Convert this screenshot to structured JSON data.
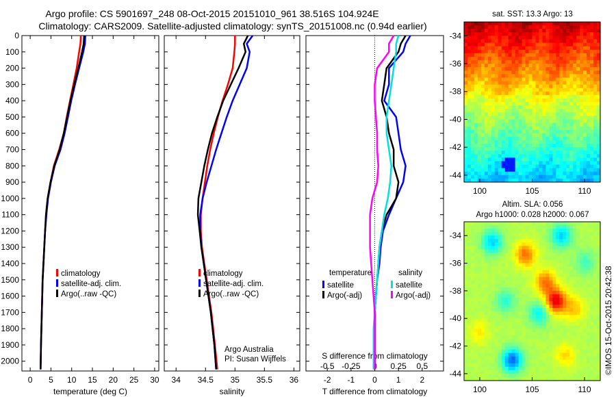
{
  "title": {
    "line1": "Argo profile: CS 5901697_248 08-Oct-2015 20151010_961 38.516S 104.924E",
    "line2": "Climatology: CARS2009. Satellite-adjusted climatology: synTS_20151008.nc (0.94d earlier)"
  },
  "colors": {
    "climatology": "#ff0000",
    "satellite": "#0000ff",
    "argo": "#000000",
    "sal_sat": "#00e0e0",
    "sal_argo": "#ff00ff"
  },
  "chart_data": [
    {
      "type": "line",
      "id": "temperature",
      "xlabel": "temperature (deg C)",
      "ylabel": "",
      "xlim": [
        -2,
        31
      ],
      "ylim": [
        2060,
        0
      ],
      "xticks": [
        0,
        5,
        10,
        15,
        20,
        25,
        30
      ],
      "yticks": [
        0,
        100,
        200,
        300,
        400,
        500,
        600,
        700,
        800,
        900,
        1000,
        1100,
        1200,
        1300,
        1400,
        1500,
        1600,
        1700,
        1800,
        1900,
        2000
      ],
      "legend": [
        "climatology",
        "satellite-adj. clim.",
        "Argo(..raw -QC)"
      ],
      "series": [
        {
          "name": "climatology",
          "color": "#ff0000",
          "x": [
            12.2,
            12.1,
            11.8,
            11.2,
            10.4,
            9.6,
            8.8,
            8.1,
            7.0,
            5.7,
            4.9,
            4.2,
            3.8,
            3.6,
            3.4,
            3.2,
            3.0,
            2.9,
            2.8,
            2.7,
            2.6,
            2.5
          ],
          "y": [
            0,
            50,
            100,
            200,
            300,
            400,
            500,
            600,
            700,
            800,
            900,
            1000,
            1100,
            1200,
            1300,
            1400,
            1500,
            1600,
            1700,
            1800,
            1900,
            2050
          ]
        },
        {
          "name": "satellite-adj. clim.",
          "color": "#0000ff",
          "x": [
            13.3,
            13.2,
            12.8,
            11.8,
            10.8,
            9.9,
            9.1,
            8.3,
            7.3,
            5.9,
            5.0,
            4.3,
            3.9,
            3.6,
            3.4,
            3.2,
            3.0,
            2.9,
            2.8,
            2.7,
            2.6,
            2.5
          ],
          "y": [
            0,
            50,
            100,
            200,
            300,
            400,
            500,
            600,
            700,
            800,
            900,
            1000,
            1100,
            1200,
            1300,
            1400,
            1500,
            1600,
            1700,
            1800,
            1900,
            2050
          ]
        },
        {
          "name": "Argo(..raw -QC)",
          "color": "#000000",
          "x": [
            13.0,
            12.9,
            12.5,
            11.6,
            10.6,
            9.7,
            8.9,
            8.1,
            7.1,
            5.8,
            4.9,
            4.2,
            3.8,
            3.6,
            3.4,
            3.2,
            3.0,
            2.9,
            2.8,
            2.7,
            2.6,
            2.5
          ],
          "y": [
            0,
            50,
            100,
            200,
            300,
            400,
            500,
            600,
            700,
            800,
            900,
            1000,
            1100,
            1200,
            1300,
            1400,
            1500,
            1600,
            1700,
            1800,
            1900,
            2050
          ]
        }
      ]
    },
    {
      "type": "line",
      "id": "salinity",
      "xlabel": "salinity",
      "ylabel": "",
      "xlim": [
        33.8,
        36.1
      ],
      "ylim": [
        2060,
        0
      ],
      "xticks": [
        34,
        34.5,
        35,
        35.5,
        36
      ],
      "legend": [
        "climatology",
        "satellite-adj. clim.",
        "Argo(..raw -QC)"
      ],
      "annotation": [
        "Argo Australia",
        "PI: Susan Wijffels"
      ],
      "series": [
        {
          "name": "climatology",
          "color": "#ff0000",
          "x": [
            35.0,
            35.0,
            34.99,
            34.96,
            34.88,
            34.79,
            34.71,
            34.64,
            34.58,
            34.53,
            34.49,
            34.45,
            34.42,
            34.42,
            34.44,
            34.48,
            34.52,
            34.56,
            34.6,
            34.63,
            34.66,
            34.7
          ],
          "y": [
            0,
            50,
            100,
            200,
            300,
            400,
            500,
            600,
            700,
            800,
            900,
            1000,
            1100,
            1200,
            1300,
            1400,
            1500,
            1600,
            1700,
            1800,
            1900,
            2050
          ]
        },
        {
          "name": "satellite-adj. clim.",
          "color": "#0000ff",
          "x": [
            35.3,
            35.2,
            35.25,
            35.2,
            35.08,
            34.96,
            34.86,
            34.77,
            34.68,
            34.6,
            34.52,
            34.45,
            34.41,
            34.41,
            34.43,
            34.47,
            34.51,
            34.55,
            34.59,
            34.62,
            34.65,
            34.68
          ],
          "y": [
            0,
            50,
            100,
            200,
            300,
            400,
            500,
            600,
            700,
            800,
            900,
            1000,
            1100,
            1200,
            1300,
            1400,
            1500,
            1600,
            1700,
            1800,
            1900,
            2050
          ]
        },
        {
          "name": "Argo(..raw -QC)",
          "color": "#000000",
          "x": [
            35.22,
            35.15,
            35.18,
            35.06,
            34.93,
            34.8,
            34.7,
            34.61,
            34.54,
            34.48,
            34.43,
            34.38,
            34.37,
            34.4,
            34.43,
            34.47,
            34.51,
            34.55,
            34.59,
            34.62,
            34.65,
            34.68
          ],
          "y": [
            0,
            50,
            100,
            200,
            300,
            400,
            500,
            600,
            700,
            800,
            900,
            1000,
            1100,
            1200,
            1300,
            1400,
            1500,
            1600,
            1700,
            1800,
            1900,
            2050
          ]
        }
      ]
    },
    {
      "type": "line",
      "id": "differences",
      "xlabel": "T difference from climatology",
      "top_axis_label": "S difference from climatology",
      "xlim": [
        -2.9,
        2.9
      ],
      "ylim": [
        2060,
        0
      ],
      "xticks": [
        -2,
        -1,
        0,
        1,
        2
      ],
      "top_ticks": {
        "values": [
          -0.5,
          -0.25,
          0,
          0.25,
          0.5
        ],
        "labels": [
          "-0.5",
          "-0.25",
          "0",
          "0.25",
          "0.5"
        ]
      },
      "legend_titles": [
        "temperature",
        "salinity"
      ],
      "legend": [
        "satellite",
        "Argo(-adj)",
        "satellite",
        "Argo(-adj)"
      ],
      "series": [
        {
          "name": "satellite",
          "group": "temperature",
          "color": "#0000ff",
          "x": [
            1.5,
            1.3,
            1.2,
            0.6,
            0.6,
            0.4,
            0.9,
            1.0,
            1.1,
            1.3,
            1.2,
            0.9,
            0.6,
            0.35,
            0.25,
            0.2,
            0.1,
            0.05,
            0.0,
            0.0,
            0.0,
            0.0
          ],
          "y": [
            0,
            50,
            100,
            200,
            300,
            400,
            500,
            600,
            700,
            800,
            900,
            1000,
            1100,
            1200,
            1300,
            1400,
            1500,
            1600,
            1700,
            1800,
            1900,
            2050
          ]
        },
        {
          "name": "Argo(-adj)",
          "group": "temperature",
          "color": "#000000",
          "x": [
            1.3,
            1.1,
            1.0,
            0.5,
            0.4,
            0.3,
            0.5,
            0.6,
            0.8,
            0.8,
            1.0,
            0.9,
            0.5,
            0.3,
            0.2,
            0.15,
            0.1,
            0.05,
            0.0,
            0.0,
            0.0,
            0.0
          ],
          "y": [
            0,
            50,
            100,
            200,
            300,
            400,
            500,
            600,
            700,
            800,
            900,
            1000,
            1100,
            1200,
            1300,
            1400,
            1500,
            1600,
            1700,
            1800,
            1900,
            2050
          ]
        },
        {
          "name": "satellite",
          "group": "salinity",
          "color": "#00e0e0",
          "x": [
            1.0,
            0.9,
            0.9,
            0.8,
            0.7,
            0.6,
            0.5,
            0.5,
            0.6,
            0.7,
            0.65,
            0.55,
            0.4,
            0.3,
            0.2,
            0.15,
            0.1,
            0.05,
            0.0,
            -0.05,
            -0.05,
            -0.05
          ],
          "y": [
            0,
            50,
            100,
            200,
            300,
            400,
            500,
            600,
            700,
            800,
            900,
            1000,
            1100,
            1200,
            1300,
            1400,
            1500,
            1600,
            1700,
            1800,
            1900,
            2050
          ]
        },
        {
          "name": "Argo(-adj)",
          "group": "salinity",
          "color": "#ff00ff",
          "x": [
            0.8,
            0.6,
            0.6,
            0.1,
            0.0,
            0.0,
            0.05,
            0.1,
            0.1,
            0.15,
            0.1,
            -0.1,
            -0.2,
            -0.2,
            -0.2,
            -0.15,
            -0.1,
            -0.05,
            0.0,
            0.0,
            0.0,
            0.0
          ],
          "y": [
            0,
            50,
            100,
            200,
            300,
            400,
            500,
            600,
            700,
            800,
            900,
            1000,
            1100,
            1200,
            1300,
            1400,
            1500,
            1600,
            1700,
            1800,
            1900,
            2050
          ]
        }
      ]
    },
    {
      "type": "heatmap",
      "id": "sst",
      "title": "sat. SST: 13.3 Argo: 13",
      "xlim": [
        98.5,
        111.5
      ],
      "ylim": [
        -44.5,
        -33
      ],
      "xticks": [
        100,
        105,
        110
      ],
      "yticks": [
        -34,
        -36,
        -38,
        -40,
        -42,
        -44
      ]
    },
    {
      "type": "heatmap",
      "id": "sla",
      "title": "Altim. SLA: 0.056",
      "subtitle": "Argo h1000: 0.028 h2000: 0.067",
      "xlim": [
        98.5,
        111.5
      ],
      "ylim": [
        -44.5,
        -33
      ],
      "xticks": [
        100,
        105,
        110
      ],
      "yticks": [
        -34,
        -36,
        -38,
        -40,
        -42,
        -44
      ]
    }
  ],
  "stamp": "©IMOS 15-Oct-2015 20:42:38"
}
